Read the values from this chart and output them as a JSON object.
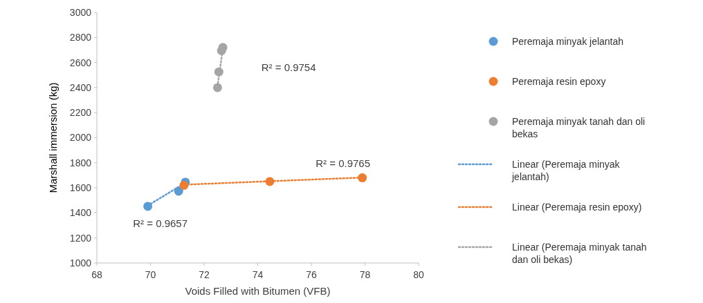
{
  "chart_data": {
    "type": "scatter",
    "xlabel": "Voids Filled with Bitumen (VFB)",
    "ylabel": "Marshall immersion (kg)",
    "xlim": [
      68,
      80
    ],
    "xticks": [
      68,
      70,
      72,
      74,
      76,
      78,
      80
    ],
    "ylim": [
      1000,
      3000
    ],
    "yticks": [
      1000,
      1200,
      1400,
      1600,
      1800,
      2000,
      2200,
      2400,
      2600,
      2800,
      3000
    ],
    "grid": false,
    "legend": "right",
    "series": [
      {
        "name": "Peremaja minyak jelantah",
        "marker": "circle",
        "color": "#5b9bd5",
        "x": [
          69.9,
          71.05,
          71.3
        ],
        "values": [
          1452,
          1573,
          1645
        ]
      },
      {
        "name": "Peremaja resin epoxy",
        "marker": "circle",
        "color": "#ed7d31",
        "x": [
          71.25,
          74.45,
          77.9
        ],
        "values": [
          1620,
          1650,
          1680
        ]
      },
      {
        "name": "Peremaja minyak tanah dan oli bekas",
        "marker": "circle",
        "color": "#a5a5a5",
        "x": [
          72.5,
          72.55,
          72.65,
          72.7
        ],
        "values": [
          2400,
          2525,
          2695,
          2720
        ]
      },
      {
        "name": "Linear (Peremaja minyak jelantah)",
        "type": "line",
        "line_style": "dotted",
        "marker": "none",
        "color": "#5b9bd5",
        "x": [
          69.9,
          71.3
        ],
        "values": [
          1458,
          1640
        ]
      },
      {
        "name": "Linear (Peremaja resin epoxy)",
        "type": "line",
        "line_style": "dotted",
        "marker": "none",
        "color": "#ed7d31",
        "x": [
          71.25,
          77.9
        ],
        "values": [
          1625,
          1682
        ]
      },
      {
        "name": "Linear (Peremaja minyak tanah dan oli bekas)",
        "type": "line",
        "line_style": "dotted",
        "marker": "none",
        "color": "#a5a5a5",
        "x": [
          72.5,
          72.7
        ],
        "values": [
          2410,
          2715
        ]
      }
    ],
    "annotations": [
      "R² = 0.9657",
      "R² = 0.9765",
      "R² = 0.9754"
    ]
  }
}
